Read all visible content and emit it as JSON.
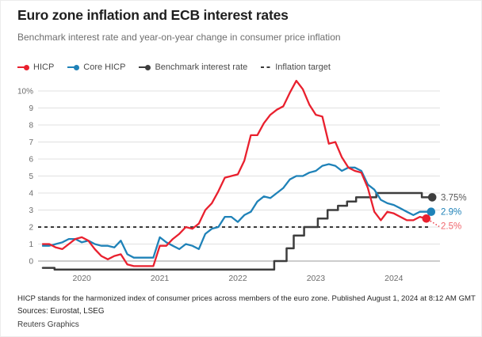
{
  "header": {
    "title": "Euro zone inflation and ECB interest rates",
    "subtitle": "Benchmark interest rate and year-on-year change in consumer price inflation"
  },
  "legend": [
    {
      "label": "HICP",
      "color": "#e9202e",
      "marker": "line-dot"
    },
    {
      "label": "Core HICP",
      "color": "#1f82b8",
      "marker": "line-dot"
    },
    {
      "label": "Benchmark interest rate",
      "color": "#3d3d3d",
      "marker": "line-dot"
    },
    {
      "label": "Inflation target",
      "color": "#3a3a3a",
      "marker": "dashes"
    }
  ],
  "chart_data": {
    "type": "line",
    "title": "Euro zone inflation and ECB interest rates",
    "subtitle": "Benchmark interest rate and year-on-year change in consumer price inflation",
    "unit": "percent",
    "x_start": "2019-07",
    "x_end": "2024-06",
    "ylim": [
      -0.6,
      10.8
    ],
    "grid": true,
    "y_ticks": [
      {
        "label": "10%",
        "value": 10
      },
      {
        "label": "9",
        "value": 9
      },
      {
        "label": "8",
        "value": 8
      },
      {
        "label": "7",
        "value": 7
      },
      {
        "label": "6",
        "value": 6
      },
      {
        "label": "5",
        "value": 5
      },
      {
        "label": "4",
        "value": 4
      },
      {
        "label": "3",
        "value": 3
      },
      {
        "label": "2",
        "value": 2
      },
      {
        "label": "1",
        "value": 1
      },
      {
        "label": "0",
        "value": 0
      }
    ],
    "x_ticks": [
      {
        "label": "2020",
        "month": 6
      },
      {
        "label": "2021",
        "month": 18
      },
      {
        "label": "2022",
        "month": 30
      },
      {
        "label": "2023",
        "month": 42
      },
      {
        "label": "2024",
        "month": 54
      }
    ],
    "target_line": {
      "label": "Inflation target",
      "value": 2,
      "color": "#3a3a3a"
    },
    "series": [
      {
        "name": "Benchmark interest rate",
        "color": "#3d3d3d",
        "label_color": "#5a5a5a",
        "mode": "step",
        "end_label": "3.75%",
        "points": [
          [
            0,
            -0.4
          ],
          [
            1.8,
            -0.5
          ],
          [
            35.6,
            0
          ],
          [
            37.5,
            0.75
          ],
          [
            38.6,
            1.5
          ],
          [
            40.2,
            2
          ],
          [
            42.3,
            2.5
          ],
          [
            43.8,
            3
          ],
          [
            45.4,
            3.25
          ],
          [
            46.8,
            3.5
          ],
          [
            48.2,
            3.75
          ],
          [
            51.3,
            4
          ],
          [
            58.3,
            3.75
          ],
          [
            59.9,
            3.75
          ]
        ]
      },
      {
        "name": "Core HICP",
        "color": "#1f82b8",
        "mode": "monthly",
        "end_label": "2.9%",
        "dot_dx": 6,
        "values": [
          0.9,
          0.9,
          1.0,
          1.1,
          1.3,
          1.3,
          1.1,
          1.2,
          1.0,
          0.9,
          0.9,
          0.8,
          1.2,
          0.4,
          0.2,
          0.2,
          0.2,
          0.2,
          1.4,
          1.1,
          0.9,
          0.7,
          1.0,
          0.9,
          0.7,
          1.6,
          1.9,
          2.0,
          2.6,
          2.6,
          2.3,
          2.7,
          2.9,
          3.5,
          3.8,
          3.7,
          4.0,
          4.3,
          4.8,
          5.0,
          5.0,
          5.2,
          5.3,
          5.6,
          5.7,
          5.6,
          5.3,
          5.5,
          5.5,
          5.3,
          4.5,
          4.2,
          3.6,
          3.4,
          3.3,
          3.1,
          2.9,
          2.7,
          2.9,
          2.9
        ]
      },
      {
        "name": "HICP",
        "color": "#e9202e",
        "label_color": "#f0666d",
        "mode": "monthly",
        "end_label": "2.5%",
        "label_dy": 9,
        "leader_dotted": true,
        "values": [
          1.0,
          1.0,
          0.8,
          0.7,
          1.0,
          1.3,
          1.4,
          1.2,
          0.7,
          0.3,
          0.1,
          0.3,
          0.4,
          -0.2,
          -0.3,
          -0.3,
          -0.3,
          -0.3,
          0.9,
          0.9,
          1.3,
          1.6,
          2.0,
          1.9,
          2.2,
          3.0,
          3.4,
          4.1,
          4.9,
          5.0,
          5.1,
          5.9,
          7.4,
          7.4,
          8.1,
          8.6,
          8.9,
          9.1,
          9.9,
          10.6,
          10.1,
          9.2,
          8.6,
          8.5,
          6.9,
          7.0,
          6.1,
          5.5,
          5.3,
          5.2,
          4.3,
          2.9,
          2.4,
          2.9,
          2.8,
          2.6,
          2.4,
          2.4,
          2.6,
          2.5
        ]
      }
    ]
  },
  "footer": {
    "note": "HICP stands for the harmonized index of consumer prices across members of the euro zone. Published August 1, 2024 at 8:12 AM GMT",
    "sources": "Sources: Eurostat, LSEG",
    "credit": "Reuters Graphics"
  }
}
